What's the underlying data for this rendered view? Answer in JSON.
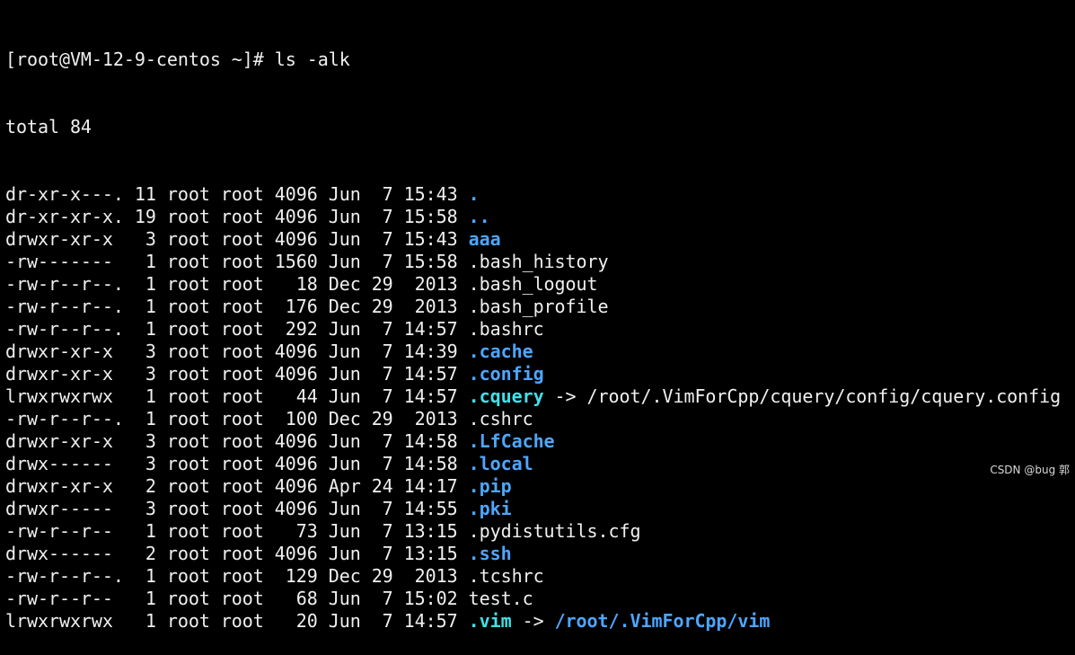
{
  "prompt": "[root@VM-12-9-centos ~]# ls -alk",
  "total": "total 84",
  "colors": {
    "background": "#000000",
    "text": "#f0f0f0",
    "directory": "#4da6ff",
    "symlink": "#40e0e8"
  },
  "rows": [
    {
      "info": "dr-xr-x---. 11 root root 4096 Jun  7 15:43 ",
      "name": ".",
      "kind": "dir",
      "arrow": "",
      "target": ""
    },
    {
      "info": "dr-xr-xr-x. 19 root root 4096 Jun  7 15:58 ",
      "name": "..",
      "kind": "dir",
      "arrow": "",
      "target": ""
    },
    {
      "info": "drwxr-xr-x   3 root root 4096 Jun  7 15:43 ",
      "name": "aaa",
      "kind": "dir",
      "arrow": "",
      "target": ""
    },
    {
      "info": "-rw-------   1 root root 1560 Jun  7 15:58 ",
      "name": ".bash_history",
      "kind": "file",
      "arrow": "",
      "target": ""
    },
    {
      "info": "-rw-r--r--.  1 root root   18 Dec 29  2013 ",
      "name": ".bash_logout",
      "kind": "file",
      "arrow": "",
      "target": ""
    },
    {
      "info": "-rw-r--r--.  1 root root  176 Dec 29  2013 ",
      "name": ".bash_profile",
      "kind": "file",
      "arrow": "",
      "target": ""
    },
    {
      "info": "-rw-r--r--.  1 root root  292 Jun  7 14:57 ",
      "name": ".bashrc",
      "kind": "file",
      "arrow": "",
      "target": ""
    },
    {
      "info": "drwxr-xr-x   3 root root 4096 Jun  7 14:39 ",
      "name": ".cache",
      "kind": "dir",
      "arrow": "",
      "target": ""
    },
    {
      "info": "drwxr-xr-x   3 root root 4096 Jun  7 14:57 ",
      "name": ".config",
      "kind": "dir",
      "arrow": "",
      "target": ""
    },
    {
      "info": "lrwxrwxrwx   1 root root   44 Jun  7 14:57 ",
      "name": ".cquery",
      "kind": "link",
      "arrow": " -> ",
      "target": "/root/.VimForCpp/cquery/config/cquery.config",
      "target_kind": "file"
    },
    {
      "info": "-rw-r--r--.  1 root root  100 Dec 29  2013 ",
      "name": ".cshrc",
      "kind": "file",
      "arrow": "",
      "target": ""
    },
    {
      "info": "drwxr-xr-x   3 root root 4096 Jun  7 14:58 ",
      "name": ".LfCache",
      "kind": "dir",
      "arrow": "",
      "target": ""
    },
    {
      "info": "drwx------   3 root root 4096 Jun  7 14:58 ",
      "name": ".local",
      "kind": "dir",
      "arrow": "",
      "target": ""
    },
    {
      "info": "drwxr-xr-x   2 root root 4096 Apr 24 14:17 ",
      "name": ".pip",
      "kind": "dir",
      "arrow": "",
      "target": ""
    },
    {
      "info": "drwxr-----   3 root root 4096 Jun  7 14:55 ",
      "name": ".pki",
      "kind": "dir",
      "arrow": "",
      "target": ""
    },
    {
      "info": "-rw-r--r--   1 root root   73 Jun  7 13:15 ",
      "name": ".pydistutils.cfg",
      "kind": "file",
      "arrow": "",
      "target": ""
    },
    {
      "info": "drwx------   2 root root 4096 Jun  7 13:15 ",
      "name": ".ssh",
      "kind": "dir",
      "arrow": "",
      "target": ""
    },
    {
      "info": "-rw-r--r--.  1 root root  129 Dec 29  2013 ",
      "name": ".tcshrc",
      "kind": "file",
      "arrow": "",
      "target": ""
    },
    {
      "info": "-rw-r--r--   1 root root   68 Jun  7 15:02 ",
      "name": "test.c",
      "kind": "file",
      "arrow": "",
      "target": ""
    },
    {
      "info": "lrwxrwxrwx   1 root root   20 Jun  7 14:57 ",
      "name": ".vim",
      "kind": "link",
      "arrow": " -> ",
      "target": "/root/.VimForCpp/vim",
      "target_kind": "dir"
    }
  ],
  "watermark": "CSDN @bug 郭"
}
